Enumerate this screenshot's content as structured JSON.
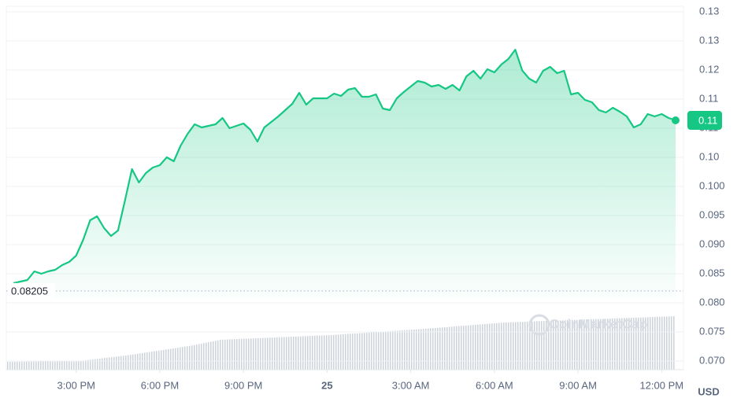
{
  "chart_data": {
    "type": "area",
    "x": [
      12.75,
      13,
      13.25,
      13.5,
      13.75,
      14,
      14.25,
      14.5,
      14.75,
      15,
      15.25,
      15.5,
      15.75,
      16,
      16.25,
      16.5,
      16.75,
      17,
      17.25,
      17.5,
      17.75,
      18,
      18.25,
      18.5,
      18.75,
      19,
      19.25,
      19.5,
      19.75,
      20,
      20.25,
      20.5,
      20.75,
      21,
      21.25,
      21.5,
      21.75,
      22,
      22.25,
      22.5,
      22.75,
      23,
      23.25,
      23.5,
      23.75,
      24,
      24.25,
      24.5,
      24.75,
      25,
      25.25,
      25.5,
      25.75,
      26,
      26.25,
      26.5,
      26.75,
      27,
      27.25,
      27.5,
      27.75,
      28,
      28.25,
      28.5,
      28.75,
      29,
      29.25,
      29.5,
      29.75,
      30,
      30.25,
      30.5,
      30.75,
      31,
      31.25,
      31.5,
      31.75,
      32,
      32.25,
      32.5,
      32.75,
      33,
      33.25,
      33.5,
      33.75,
      34,
      34.25,
      34.5,
      34.75,
      35,
      35.25,
      35.5,
      35.75,
      36,
      36.25,
      36.5
    ],
    "values": [
      0.08338,
      0.08365,
      0.08392,
      0.08541,
      0.085,
      0.08541,
      0.08568,
      0.08649,
      0.08703,
      0.08811,
      0.09081,
      0.09419,
      0.09486,
      0.09284,
      0.09149,
      0.09243,
      0.09757,
      0.10297,
      0.10068,
      0.1023,
      0.10324,
      0.10365,
      0.105,
      0.10432,
      0.10703,
      0.10905,
      0.11068,
      0.11014,
      0.11041,
      0.11068,
      0.11176,
      0.11,
      0.11041,
      0.11081,
      0.10973,
      0.1077,
      0.11014,
      0.11108,
      0.11203,
      0.11311,
      0.11419,
      0.11608,
      0.11405,
      0.11514,
      0.11514,
      0.11514,
      0.11595,
      0.11554,
      0.11662,
      0.11689,
      0.11541,
      0.11541,
      0.11581,
      0.11338,
      0.11311,
      0.11514,
      0.11622,
      0.11716,
      0.11811,
      0.11784,
      0.11716,
      0.11743,
      0.11676,
      0.11743,
      0.11649,
      0.11892,
      0.11986,
      0.11851,
      0.12014,
      0.11959,
      0.12095,
      0.12189,
      0.1235,
      0.1199,
      0.11851,
      0.11784,
      0.11986,
      0.12054,
      0.11946,
      0.11986,
      0.11581,
      0.11608,
      0.11486,
      0.11446,
      0.11311,
      0.1127,
      0.11351,
      0.11284,
      0.11203,
      0.11014,
      0.11068,
      0.11243,
      0.11203,
      0.11243,
      0.11176,
      0.11135
    ],
    "color": "#16c784",
    "xlim": [
      12.55,
      36.5
    ],
    "xticks": [
      {
        "value": 15,
        "label": "3:00 PM"
      },
      {
        "value": 18,
        "label": "6:00 PM"
      },
      {
        "value": 21,
        "label": "9:00 PM"
      },
      {
        "value": 24,
        "label": "25"
      },
      {
        "value": 27,
        "label": "3:00 AM"
      },
      {
        "value": 30,
        "label": "6:00 AM"
      },
      {
        "value": 33,
        "label": "9:00 AM"
      },
      {
        "value": 36,
        "label": "12:00 PM"
      }
    ],
    "ylim": [
      0.07,
      0.13
    ],
    "yticks": [
      {
        "value": 0.07,
        "label": "0.070"
      },
      0.075,
      {
        "value": 0.08,
        "label": "0.080"
      },
      0.085,
      {
        "value": 0.09,
        "label": "0.090"
      },
      0.095,
      {
        "value": 0.1,
        "label": "0.100"
      },
      {
        "value": 0.105,
        "label": "0.10"
      },
      0.11,
      {
        "value": 0.115,
        "label": "0.11"
      },
      0.12,
      {
        "value": 0.125,
        "label": "0.13"
      },
      0.13
    ],
    "grid": true,
    "baseline": 0.08205,
    "current_price": {
      "value": 0.11135,
      "label": "0.11"
    },
    "currency": "USD",
    "watermark": "CoinMarketCap"
  }
}
